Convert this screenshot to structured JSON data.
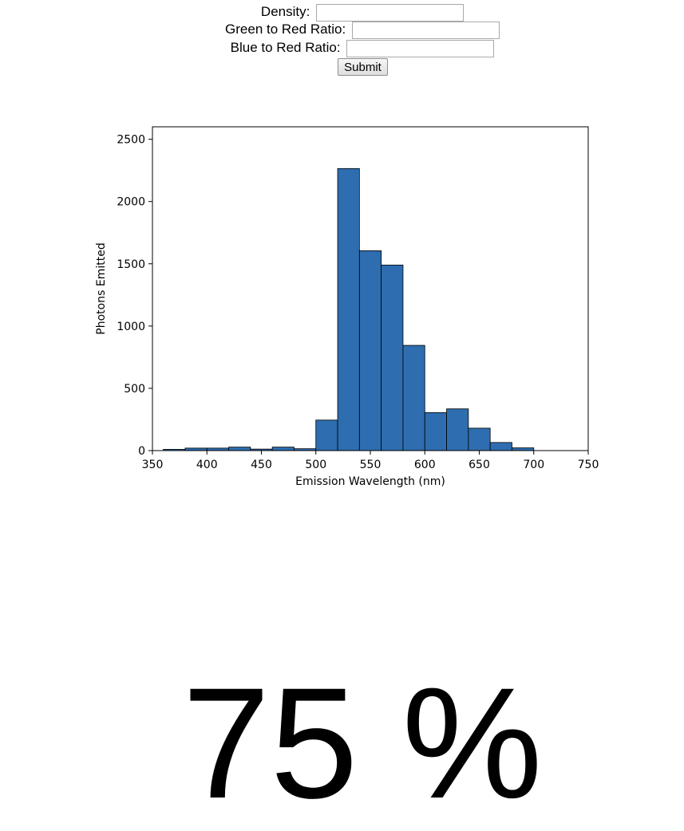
{
  "form": {
    "density_label": "Density:",
    "density_value": "",
    "green_red_label": "Green to Red Ratio:",
    "green_red_value": "",
    "blue_red_label": "Blue to Red Ratio:",
    "blue_red_value": "",
    "submit_label": "Submit"
  },
  "chart_data": {
    "type": "bar",
    "xlabel": "Emission Wavelength (nm)",
    "ylabel": "Photons Emitted",
    "xlim": [
      350,
      750
    ],
    "ylim": [
      0,
      2600
    ],
    "xticks": [
      350,
      400,
      450,
      500,
      550,
      600,
      650,
      700,
      750
    ],
    "yticks": [
      0,
      500,
      1000,
      1500,
      2000,
      2500
    ],
    "bin_edges": [
      360,
      380,
      400,
      420,
      440,
      460,
      480,
      500,
      520,
      540,
      560,
      580,
      600,
      620,
      640,
      660,
      680,
      700
    ],
    "values": [
      10,
      20,
      20,
      28,
      12,
      28,
      15,
      245,
      2265,
      1605,
      1490,
      845,
      305,
      335,
      180,
      65,
      22
    ],
    "bar_color": "#2e6daf",
    "edge_color": "#000000",
    "grid": false
  },
  "result": {
    "percent_text": "75 %"
  }
}
